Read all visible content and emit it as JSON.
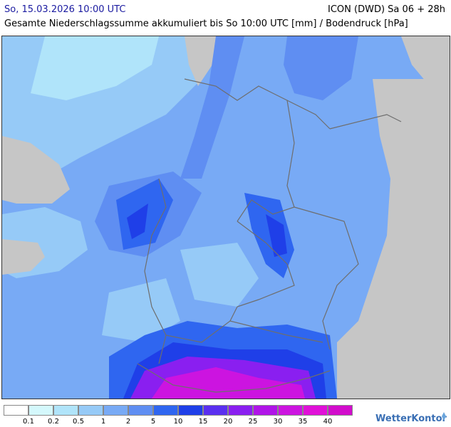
{
  "header": {
    "datetime": "So, 15.03.2026 10:00 UTC",
    "model": "ICON (DWD) Sa 06 + 28h",
    "subtitle": "Gesamte Niederschlagssumme akkumuliert bis So 10:00 UTC [mm] / Bodendruck [hPa]"
  },
  "legend": {
    "ticks": [
      "0.1",
      "0.2",
      "0.5",
      "1",
      "2",
      "5",
      "10",
      "15",
      "20",
      "25",
      "30",
      "35",
      "40"
    ],
    "colors": [
      "#ffffff",
      "#d4f8fc",
      "#b0e4fa",
      "#96caf7",
      "#78aaf5",
      "#5f8ef2",
      "#2f66f0",
      "#1f3fe8",
      "#5a2ff0",
      "#8a1ff0",
      "#b014e8",
      "#cc14e0",
      "#e010d8",
      "#d20ccc"
    ]
  },
  "colors": {
    "land_gray": "#c6c6c6",
    "sea_light": "#d4f8fc",
    "border_line": "#6e6e6e"
  },
  "logo": {
    "text_main": "WetterKontor",
    "icon": "wetterkontor-logo-icon"
  }
}
